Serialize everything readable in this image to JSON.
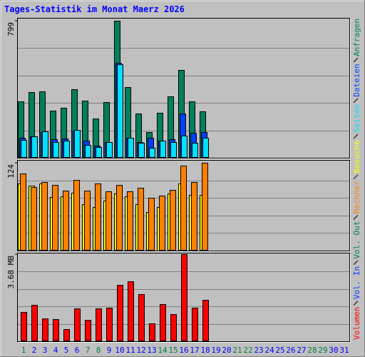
{
  "chart_data": [
    {
      "type": "bar",
      "title": "Tages-Statistik im Monat Maerz 2026",
      "ylim": [
        0,
        799
      ],
      "yticks": [
        799
      ],
      "series": [
        {
          "name": "Anfragen",
          "color": "#00805c",
          "values": [
            328,
            383,
            387,
            273,
            290,
            400,
            332,
            227,
            324,
            799,
            412,
            256,
            151,
            261,
            357,
            513,
            328,
            269,
            null,
            null,
            null,
            null,
            null,
            null,
            null,
            null,
            null,
            null,
            null,
            null,
            null
          ]
        },
        {
          "name": "Dateien",
          "color": "#0040ff",
          "values": [
            118,
            126,
            151,
            109,
            114,
            160,
            101,
            71,
            93,
            555,
            118,
            93,
            118,
            101,
            109,
            257,
            147,
            151,
            null,
            null,
            null,
            null,
            null,
            null,
            null,
            null,
            null,
            null,
            null,
            null,
            null
          ]
        },
        {
          "name": "Seiten",
          "color": "#00e0ff",
          "values": [
            105,
            126,
            156,
            93,
            101,
            164,
            76,
            63,
            93,
            547,
            118,
            88,
            59,
            101,
            93,
            130,
            88,
            118,
            null,
            null,
            null,
            null,
            null,
            null,
            null,
            null,
            null,
            null,
            null,
            null,
            null
          ]
        }
      ]
    },
    {
      "type": "bar",
      "ylim": [
        0,
        124
      ],
      "yticks": [
        124
      ],
      "series": [
        {
          "name": "Besuche",
          "color": "#ffff00",
          "values": [
            95,
            92,
            95,
            76,
            77,
            82,
            66,
            61,
            71,
            81,
            77,
            66,
            54,
            62,
            81,
            95,
            79,
            79,
            null,
            null,
            null,
            null,
            null,
            null,
            null,
            null,
            null,
            null,
            null,
            null,
            null
          ]
        },
        {
          "name": "Rechner",
          "color": "#ff8000",
          "values": [
            109,
            90,
            97,
            93,
            85,
            100,
            85,
            95,
            84,
            93,
            84,
            89,
            75,
            78,
            86,
            120,
            97,
            124,
            null,
            null,
            null,
            null,
            null,
            null,
            null,
            null,
            null,
            null,
            null,
            null,
            null
          ]
        }
      ]
    },
    {
      "type": "bar",
      "ylim": [
        0,
        3.68
      ],
      "yticks": [
        {
          "value": 3.68,
          "label": "3.68 MB"
        }
      ],
      "categories": [
        "1",
        "2",
        "3",
        "4",
        "5",
        "6",
        "7",
        "8",
        "9",
        "10",
        "11",
        "12",
        "13",
        "14",
        "15",
        "16",
        "17",
        "18",
        "19",
        "20",
        "21",
        "22",
        "23",
        "24",
        "25",
        "26",
        "27",
        "28",
        "29",
        "30",
        "31"
      ],
      "category_colors": [
        "#008040",
        "#0000ff",
        "#0000ff",
        "#0000ff",
        "#0000ff",
        "#0000ff",
        "#008040",
        "#008040",
        "#0000ff",
        "#0000ff",
        "#0000ff",
        "#0000ff",
        "#0000ff",
        "#008040",
        "#008040",
        "#0000ff",
        "#0000ff",
        "#0000ff",
        "#0000ff",
        "#0000ff",
        "#008040",
        "#008040",
        "#0000ff",
        "#0000ff",
        "#0000ff",
        "#0000ff",
        "#0000ff",
        "#008040",
        "#008040",
        "#0000ff",
        "#0000ff"
      ],
      "series": [
        {
          "name": "Volumen",
          "color": "#ff0000",
          "values": [
            1.25,
            1.55,
            0.97,
            0.94,
            0.52,
            1.4,
            0.91,
            1.4,
            1.43,
            2.37,
            2.52,
            1.98,
            0.76,
            1.58,
            1.16,
            3.68,
            1.43,
            1.76,
            null,
            null,
            null,
            null,
            null,
            null,
            null,
            null,
            null,
            null,
            null,
            null,
            null
          ]
        },
        {
          "name": "Vol. In",
          "color": "#0040ff"
        },
        {
          "name": "Vol. Out",
          "color": "#00805c"
        }
      ]
    }
  ]
}
